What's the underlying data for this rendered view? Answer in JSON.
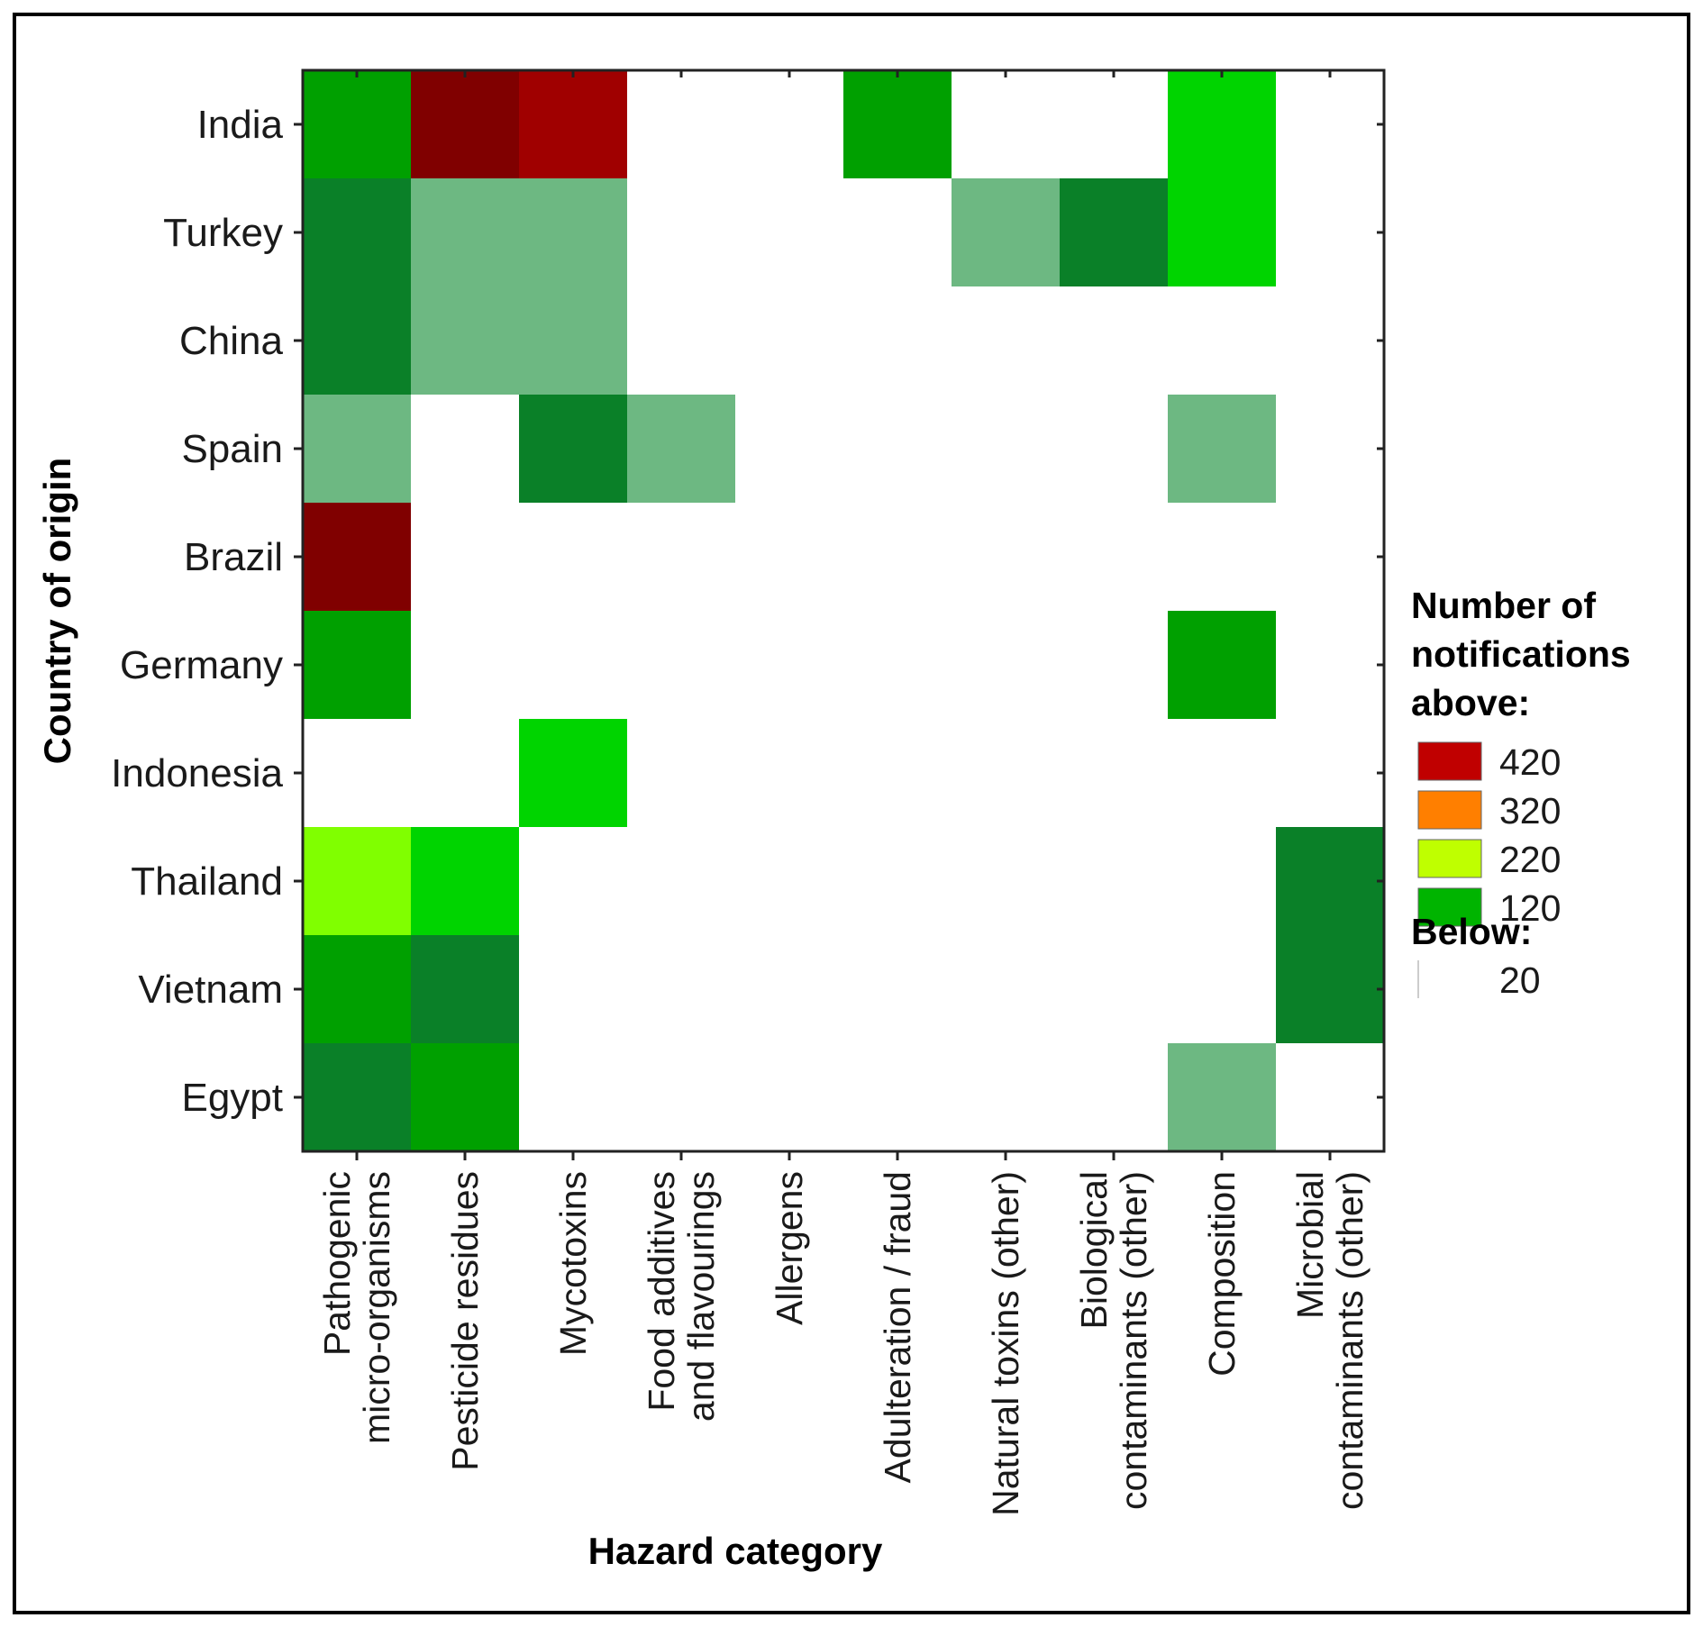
{
  "chart_data": {
    "type": "heatmap",
    "title": "",
    "xlabel": "Hazard category",
    "ylabel": "Country of origin",
    "x_categories": [
      [
        "Pathogenic",
        "micro-organisms"
      ],
      [
        "Pesticide residues"
      ],
      [
        "Mycotoxins"
      ],
      [
        "Food additives",
        "and flavourings"
      ],
      [
        "Allergens"
      ],
      [
        "Adulteration / fraud"
      ],
      [
        "Natural toxins (other)"
      ],
      [
        "Biological",
        "contaminants (other)"
      ],
      [
        "Composition"
      ],
      [
        "Microbial",
        "contaminants (other)"
      ]
    ],
    "y_categories": [
      "India",
      "Turkey",
      "China",
      "Spain",
      "Brazil",
      "Germany",
      "Indonesia",
      "Thailand",
      "Vietnam",
      "Egypt"
    ],
    "values": [
      [
        155,
        540,
        460,
        0,
        0,
        150,
        0,
        0,
        195,
        0
      ],
      [
        90,
        50,
        50,
        0,
        0,
        0,
        50,
        90,
        195,
        0
      ],
      [
        90,
        50,
        50,
        0,
        0,
        0,
        0,
        0,
        0,
        0
      ],
      [
        50,
        0,
        90,
        50,
        0,
        0,
        0,
        0,
        50,
        0
      ],
      [
        540,
        0,
        0,
        0,
        0,
        0,
        0,
        0,
        0,
        0
      ],
      [
        150,
        0,
        0,
        0,
        0,
        0,
        0,
        0,
        150,
        0
      ],
      [
        0,
        0,
        195,
        0,
        0,
        0,
        0,
        0,
        0,
        0
      ],
      [
        250,
        195,
        0,
        0,
        0,
        0,
        0,
        0,
        0,
        90
      ],
      [
        150,
        90,
        0,
        0,
        0,
        0,
        0,
        0,
        0,
        90
      ],
      [
        90,
        150,
        0,
        0,
        0,
        0,
        0,
        0,
        50,
        0
      ]
    ],
    "legend": {
      "title_lines": [
        "Number of",
        "notifications",
        "above:"
      ],
      "below_title": "Below:",
      "thresholds": [
        {
          "label": "420",
          "color": "#c00000"
        },
        {
          "label": "320",
          "color": "#ff7f00"
        },
        {
          "label": "220",
          "color": "#bfff00"
        },
        {
          "label": "120",
          "color": "#00b400"
        }
      ],
      "below": {
        "label": "20",
        "color": "#ffffff"
      },
      "placement": "right"
    }
  }
}
